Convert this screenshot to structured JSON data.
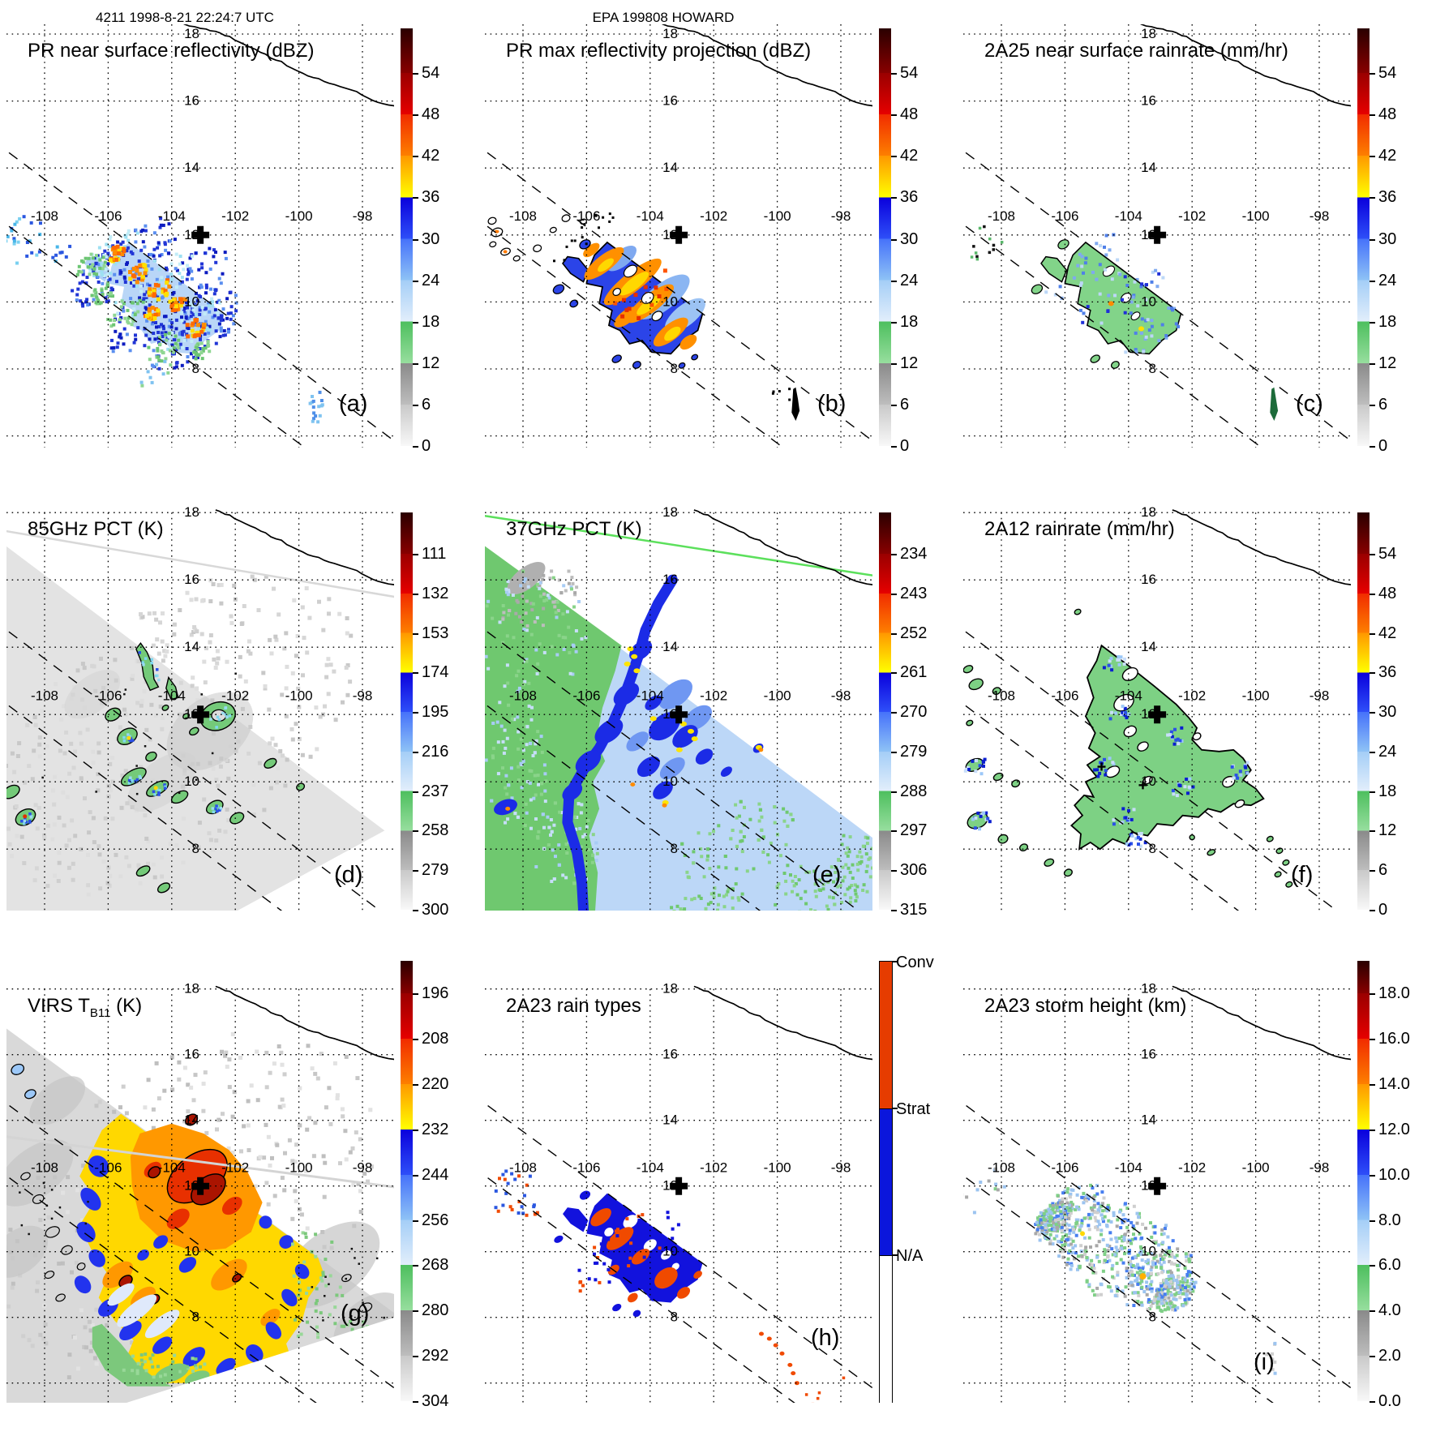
{
  "header": {
    "left_title": "4211 1998-8-21 22:24:7 UTC",
    "center_title": "EPA 199808 HOWARD"
  },
  "map": {
    "lat_tick_labels": [
      "18",
      "16",
      "14",
      "12",
      "10",
      "8"
    ],
    "lon_tick_labels": [
      "-108",
      "-106",
      "-104",
      "-102",
      "-100",
      "-98"
    ],
    "storm_marker_name": "storm-center-cross"
  },
  "palettes": {
    "rainbow_segments": [
      [
        "#2a0000",
        "#880000"
      ],
      [
        "#9a0000",
        "#e60000"
      ],
      [
        "#f12c00",
        "#fd7f00"
      ],
      [
        "#ff9800",
        "#ffff00"
      ],
      [
        "#0a00dc",
        "#2e4ff8"
      ],
      [
        "#4672fa",
        "#8ec2f6"
      ],
      [
        "#a4cef7",
        "#e2eefb"
      ],
      [
        "#4dbf5e",
        "#97de9e"
      ],
      [
        "#8a8a8a",
        "#bdbdbd"
      ],
      [
        "#c9c9c9",
        "#f8f8f8"
      ]
    ],
    "raintype_colors": [
      "#e63c00",
      "#0b16dc",
      "#ffffff"
    ]
  },
  "panels": [
    {
      "id": "a",
      "letter": "(a)",
      "title": "PR near surface reflectivity (dBZ)",
      "colorbar_ticks": [
        "54",
        "48",
        "42",
        "36",
        "30",
        "24",
        "18",
        "12",
        "6",
        "0"
      ]
    },
    {
      "id": "b",
      "letter": "(b)",
      "title": "PR max reflectivity projection (dBZ)",
      "colorbar_ticks": [
        "54",
        "48",
        "42",
        "36",
        "30",
        "24",
        "18",
        "12",
        "6",
        "0"
      ]
    },
    {
      "id": "c",
      "letter": "(c)",
      "title": "2A25 near surface rainrate (mm/hr)",
      "colorbar_ticks": [
        "54",
        "48",
        "42",
        "36",
        "30",
        "24",
        "18",
        "12",
        "6",
        "0"
      ]
    },
    {
      "id": "d",
      "letter": "(d)",
      "title": "85GHz PCT (K)",
      "colorbar_ticks": [
        "111",
        "132",
        "153",
        "174",
        "195",
        "216",
        "237",
        "258",
        "279",
        "300"
      ]
    },
    {
      "id": "e",
      "letter": "(e)",
      "title": "37GHz PCT (K)",
      "colorbar_ticks": [
        "234",
        "243",
        "252",
        "261",
        "270",
        "279",
        "288",
        "297",
        "306",
        "315"
      ]
    },
    {
      "id": "f",
      "letter": "(f)",
      "title": "2A12 rainrate (mm/hr)",
      "colorbar_ticks": [
        "54",
        "48",
        "42",
        "36",
        "30",
        "24",
        "18",
        "12",
        "6",
        "0"
      ]
    },
    {
      "id": "g",
      "letter": "(g)",
      "title_pre": "VIRS T",
      "title_sub": "B11",
      "title_post": " (K)",
      "colorbar_ticks": [
        "196",
        "208",
        "220",
        "232",
        "244",
        "256",
        "268",
        "280",
        "292",
        "304"
      ]
    },
    {
      "id": "h",
      "letter": "(h)",
      "title": "2A23 rain types",
      "raintype_labels": [
        "Conv",
        "Strat",
        "N/A"
      ]
    },
    {
      "id": "i",
      "letter": "(i)",
      "title": "2A23 storm height (km)",
      "colorbar_ticks": [
        "18.0",
        "16.0",
        "14.0",
        "12.0",
        "10.0",
        "8.0",
        "6.0",
        "4.0",
        "2.0",
        "0.0"
      ]
    }
  ],
  "chart_data": [
    {
      "panel": "a",
      "type": "heatmap",
      "title": "PR near surface reflectivity (dBZ)",
      "colorbar_ticks": [
        54,
        48,
        42,
        36,
        30,
        24,
        18,
        12,
        6,
        0
      ],
      "lat_ticks": [
        18,
        16,
        14,
        12,
        10,
        8
      ],
      "lon_ticks": [
        -108,
        -106,
        -104,
        -102,
        -100,
        -98
      ],
      "storm_center": {
        "lon": -103.1,
        "lat": 12.0
      },
      "content": "Speckled 18-45 dBZ rainband echoes between PR swath dashed edges, centered near (-104.5,10), scattered cells NW near (-108.8,12) and a small trail near (-99.5,7)"
    },
    {
      "panel": "b",
      "type": "heatmap",
      "title": "PR max reflectivity projection (dBZ)",
      "colorbar_ticks": [
        54,
        48,
        42,
        36,
        30,
        24,
        18,
        12,
        6,
        0
      ],
      "content": "Same rainband as (a) but denser, dominated by 30-48 dBZ blue/orange/yellow cores with black contour outlines; small contoured cells NW"
    },
    {
      "panel": "c",
      "type": "heatmap",
      "title": "2A25 near surface rainrate (mm/hr)",
      "colorbar_ticks": [
        54,
        48,
        42,
        36,
        30,
        24,
        18,
        12,
        6,
        0
      ],
      "content": "Mostly 1-6 mm/hr green rain area with black outline matching the PR rainband, sparse 12-30 mm/hr blue speckles"
    },
    {
      "panel": "d",
      "type": "heatmap",
      "title": "85GHz PCT (K)",
      "colorbar_ticks": [
        111,
        132,
        153,
        174,
        195,
        216,
        237,
        258,
        279,
        300
      ],
      "content": "Wide gray TMI swath (~260-300 K), black-outlined green (~237 K) convective cells with blue (~195-216 K) cores, broken eyewall ring near storm center (-102.6,12)"
    },
    {
      "panel": "e",
      "type": "heatmap",
      "title": "37GHz PCT (K)",
      "colorbar_ticks": [
        234,
        243,
        252,
        261,
        270,
        279,
        288,
        297,
        306,
        315
      ],
      "content": "Full TMI swath: green (~290 K) northwest half, light blue (~280 K) southeast half, dark blue (~270 K) curved band with yellow (~261 K) specks near the storm, gray patch at top"
    },
    {
      "panel": "f",
      "type": "heatmap",
      "title": "2A12 rainrate (mm/hr)",
      "colorbar_ticks": [
        54,
        48,
        42,
        36,
        30,
        24,
        18,
        12,
        6,
        0
      ],
      "content": "Large black-outlined green (1-6 mm/hr) rain shield over TMI swath with embedded blue (12-24 mm/hr) speckles, satellite blobs W and SE"
    },
    {
      "panel": "g",
      "type": "heatmap",
      "title": "VIRS TB11 (K)",
      "colorbar_ticks": [
        196,
        208,
        220,
        232,
        244,
        256,
        268,
        280,
        292,
        304
      ],
      "content": "Wide VIRS swath: gray warm scene with large cold cloud shield of yellow/orange (~220-232 K), dark-red (<208 K) contoured cores near center, blue (~244-256 K) rim, green (~268 K) fringe"
    },
    {
      "panel": "h",
      "type": "categorical-map",
      "title": "2A23 rain types",
      "categories": [
        "Conv",
        "Strat",
        "N/A"
      ],
      "content": "Stratiform (blue) rainband with embedded convective (orange-red) patches inside PR swath; scattered convective specks NW and SE"
    },
    {
      "panel": "i",
      "type": "heatmap",
      "title": "2A23 storm height (km)",
      "colorbar_ticks": [
        18.0,
        16.0,
        14.0,
        12.0,
        10.0,
        8.0,
        6.0,
        4.0,
        2.0,
        0.0
      ],
      "content": "Speckled storm-height field 4-10 km (gray/green/light-blue/blue pixels) over the PR rainband footprint"
    }
  ]
}
